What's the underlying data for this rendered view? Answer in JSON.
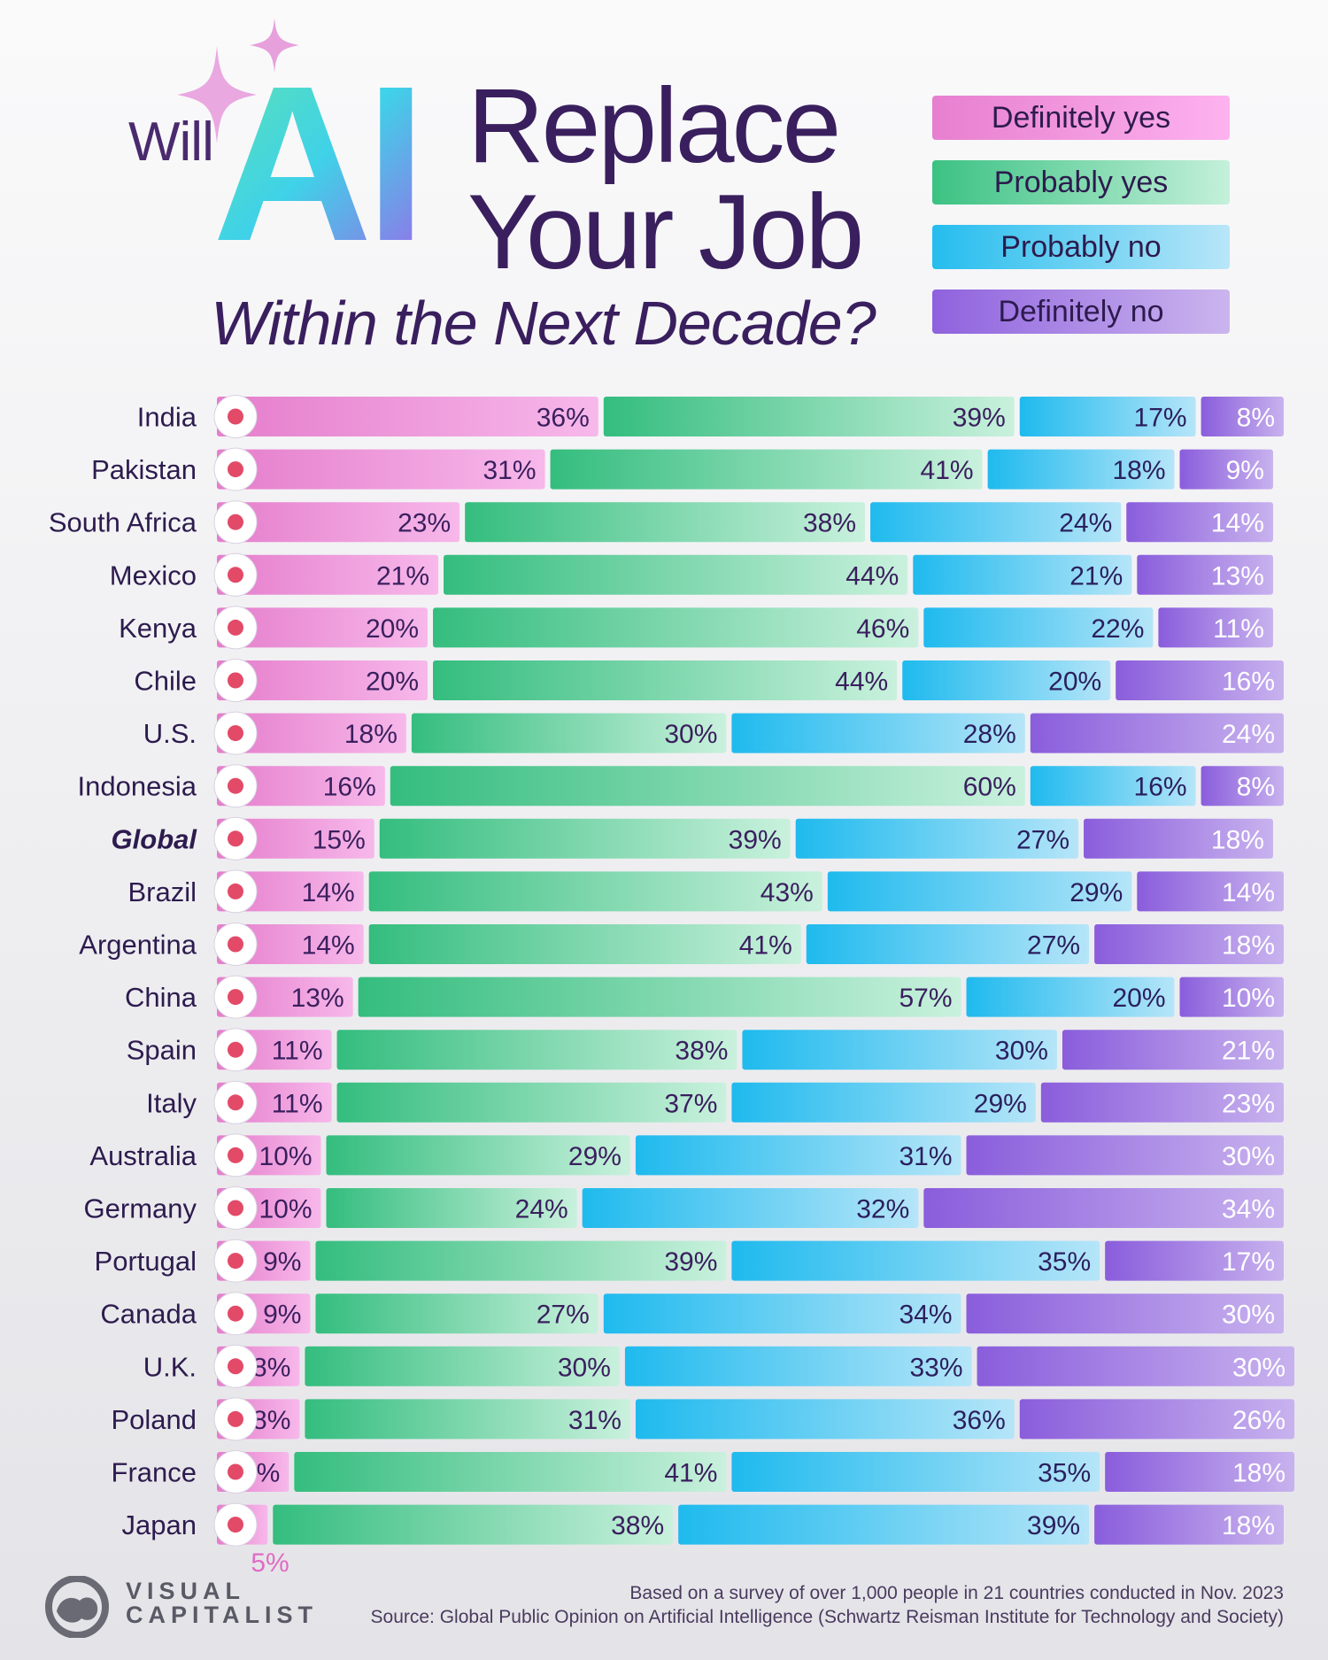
{
  "title": {
    "will": "Will",
    "ai": "AI",
    "line1": "Replace",
    "line2": "Your Job",
    "subtitle": "Within the Next Decade?"
  },
  "legend": [
    {
      "label": "Definitely yes",
      "color": "#e77fcf"
    },
    {
      "label": "Probably yes",
      "color": "#42c98a"
    },
    {
      "label": "Probably no",
      "color": "#2fc2ee"
    },
    {
      "label": "Definitely no",
      "color": "#9368e0"
    }
  ],
  "chart_data": {
    "type": "bar",
    "orientation": "horizontal-stacked-100",
    "categories": [
      "India",
      "Pakistan",
      "South Africa",
      "Mexico",
      "Kenya",
      "Chile",
      "U.S.",
      "Indonesia",
      "Global",
      "Brazil",
      "Argentina",
      "China",
      "Spain",
      "Italy",
      "Australia",
      "Germany",
      "Portugal",
      "Canada",
      "U.K.",
      "Poland",
      "France",
      "Japan"
    ],
    "series": [
      {
        "name": "Definitely yes",
        "values": [
          36,
          31,
          23,
          21,
          20,
          20,
          18,
          16,
          15,
          14,
          14,
          13,
          11,
          11,
          10,
          10,
          9,
          9,
          8,
          8,
          7,
          5
        ]
      },
      {
        "name": "Probably yes",
        "values": [
          39,
          41,
          38,
          44,
          46,
          44,
          30,
          60,
          39,
          43,
          41,
          57,
          38,
          37,
          29,
          24,
          39,
          27,
          30,
          31,
          41,
          38
        ]
      },
      {
        "name": "Probably no",
        "values": [
          17,
          18,
          24,
          21,
          22,
          20,
          28,
          16,
          27,
          29,
          27,
          20,
          30,
          29,
          31,
          32,
          35,
          34,
          33,
          36,
          35,
          39
        ]
      },
      {
        "name": "Definitely no",
        "values": [
          8,
          9,
          14,
          13,
          11,
          16,
          24,
          8,
          18,
          14,
          18,
          10,
          21,
          23,
          30,
          34,
          17,
          30,
          30,
          26,
          18,
          18
        ]
      }
    ],
    "xlim": [
      0,
      100
    ],
    "legend_position": "top-right"
  },
  "footer": {
    "note": "Based on a survey of over 1,000 people in 21 countries conducted in Nov. 2023",
    "source": "Source: Global Public Opinion on Artificial Intelligence (Schwartz Reisman Institute for Technology and Society)",
    "brand_line1": "VISUAL",
    "brand_line2": "CAPITALIST"
  }
}
